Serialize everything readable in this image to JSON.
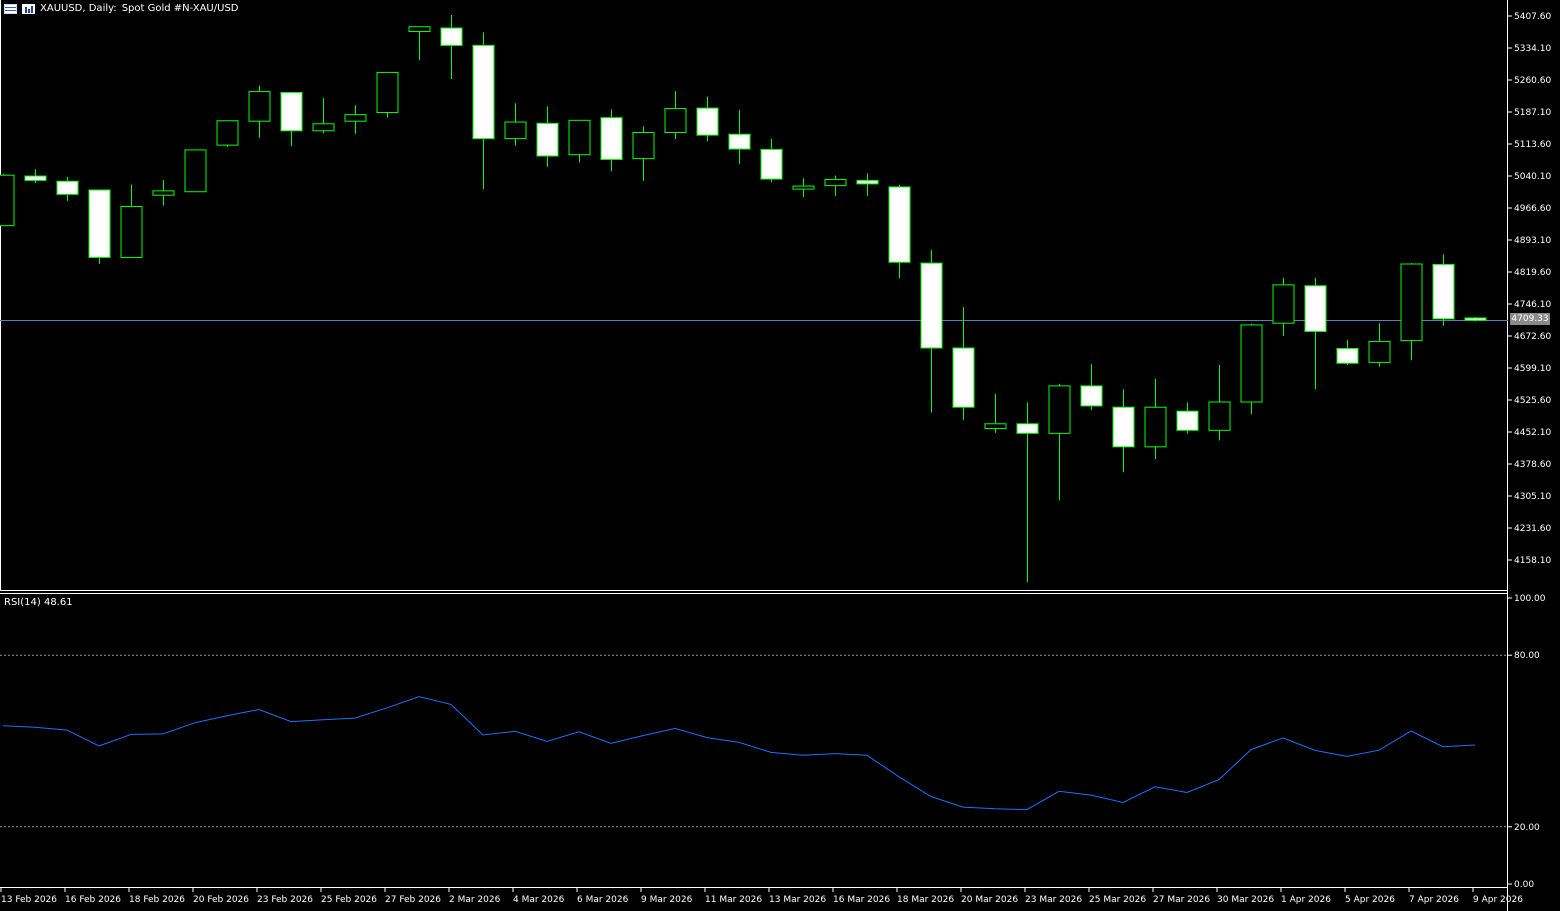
{
  "header": {
    "symbol": "XAUUSD, Daily:",
    "description": "Spot Gold #N-XAU/USD",
    "icons": [
      "window-grid-icon",
      "chart-type-icon"
    ]
  },
  "rsi_label": "RSI(14) 48.61",
  "current_price_label": "4709.33",
  "colors": {
    "background": "#000000",
    "up_body": "#000000",
    "down_body": "#ffffff",
    "wick": "#00ff00",
    "rsi_line": "#1e6fff",
    "price_line": "#5b7fbf",
    "axis_text": "#ffffff",
    "grid_dashed": "#9a9a9a"
  },
  "chart_data": [
    {
      "type": "candlestick",
      "title": "XAUUSD, Daily: Spot Gold #N-XAU/USD",
      "y_ticks": [
        "5407.60",
        "5334.10",
        "5260.60",
        "5187.10",
        "5113.60",
        "5040.10",
        "4966.60",
        "4893.10",
        "4819.60",
        "4746.10",
        "4672.60",
        "4599.10",
        "4525.60",
        "4452.10",
        "4378.60",
        "4305.10",
        "4231.60",
        "4158.10"
      ],
      "ylim": [
        4106,
        5430
      ],
      "x_ticks": [
        "13 Feb 2026",
        "16 Feb 2026",
        "18 Feb 2026",
        "20 Feb 2026",
        "23 Feb 2026",
        "25 Feb 2026",
        "27 Feb 2026",
        "2 Mar 2026",
        "4 Mar 2026",
        "6 Mar 2026",
        "9 Mar 2026",
        "11 Mar 2026",
        "13 Mar 2026",
        "16 Mar 2026",
        "18 Mar 2026",
        "20 Mar 2026",
        "23 Mar 2026",
        "25 Mar 2026",
        "27 Mar 2026",
        "30 Mar 2026",
        "1 Apr 2026",
        "5 Apr 2026",
        "7 Apr 2026",
        "9 Apr 2026"
      ],
      "last_price": 4709.33,
      "candles": [
        {
          "o": 4926,
          "h": 5045,
          "l": 4926,
          "c": 5042
        },
        {
          "o": 5040,
          "h": 5056,
          "l": 5024,
          "c": 5030
        },
        {
          "o": 5028,
          "h": 5038,
          "l": 4983,
          "c": 4998
        },
        {
          "o": 5008,
          "h": 5008,
          "l": 4838,
          "c": 4853
        },
        {
          "o": 4853,
          "h": 5020,
          "l": 4853,
          "c": 4970
        },
        {
          "o": 4996,
          "h": 5031,
          "l": 4972,
          "c": 5006
        },
        {
          "o": 5004,
          "h": 5100,
          "l": 5004,
          "c": 5100
        },
        {
          "o": 5111,
          "h": 5167,
          "l": 5107,
          "c": 5167
        },
        {
          "o": 5166,
          "h": 5248,
          "l": 5128,
          "c": 5234
        },
        {
          "o": 5232,
          "h": 5232,
          "l": 5109,
          "c": 5144
        },
        {
          "o": 5144,
          "h": 5219,
          "l": 5138,
          "c": 5160
        },
        {
          "o": 5166,
          "h": 5203,
          "l": 5137,
          "c": 5181
        },
        {
          "o": 5186,
          "h": 5278,
          "l": 5174,
          "c": 5278
        },
        {
          "o": 5372,
          "h": 5383,
          "l": 5306,
          "c": 5383
        },
        {
          "o": 5380,
          "h": 5410,
          "l": 5263,
          "c": 5340
        },
        {
          "o": 5340,
          "h": 5370,
          "l": 5010,
          "c": 5126
        },
        {
          "o": 5126,
          "h": 5207,
          "l": 5110,
          "c": 5164
        },
        {
          "o": 5161,
          "h": 5200,
          "l": 5061,
          "c": 5086
        },
        {
          "o": 5089,
          "h": 5168,
          "l": 5071,
          "c": 5168
        },
        {
          "o": 5174,
          "h": 5193,
          "l": 5051,
          "c": 5078
        },
        {
          "o": 5080,
          "h": 5154,
          "l": 5029,
          "c": 5140
        },
        {
          "o": 5140,
          "h": 5235,
          "l": 5125,
          "c": 5195
        },
        {
          "o": 5196,
          "h": 5222,
          "l": 5120,
          "c": 5134
        },
        {
          "o": 5136,
          "h": 5192,
          "l": 5067,
          "c": 5102
        },
        {
          "o": 5101,
          "h": 5126,
          "l": 5026,
          "c": 5033
        },
        {
          "o": 5010,
          "h": 5035,
          "l": 4992,
          "c": 5017
        },
        {
          "o": 5018,
          "h": 5041,
          "l": 4994,
          "c": 5032
        },
        {
          "o": 5030,
          "h": 5046,
          "l": 4994,
          "c": 5022
        },
        {
          "o": 5015,
          "h": 5020,
          "l": 4805,
          "c": 4842
        },
        {
          "o": 4840,
          "h": 4870,
          "l": 4497,
          "c": 4645
        },
        {
          "o": 4645,
          "h": 4739,
          "l": 4480,
          "c": 4509
        },
        {
          "o": 4460,
          "h": 4540,
          "l": 4450,
          "c": 4471
        },
        {
          "o": 4471,
          "h": 4520,
          "l": 4107,
          "c": 4449
        },
        {
          "o": 4449,
          "h": 4563,
          "l": 4295,
          "c": 4558
        },
        {
          "o": 4558,
          "h": 4608,
          "l": 4503,
          "c": 4512
        },
        {
          "o": 4509,
          "h": 4550,
          "l": 4360,
          "c": 4418
        },
        {
          "o": 4418,
          "h": 4574,
          "l": 4390,
          "c": 4509
        },
        {
          "o": 4500,
          "h": 4520,
          "l": 4448,
          "c": 4456
        },
        {
          "o": 4456,
          "h": 4606,
          "l": 4433,
          "c": 4521
        },
        {
          "o": 4521,
          "h": 4701,
          "l": 4493,
          "c": 4698
        },
        {
          "o": 4702,
          "h": 4806,
          "l": 4673,
          "c": 4790
        },
        {
          "o": 4788,
          "h": 4806,
          "l": 4550,
          "c": 4683
        },
        {
          "o": 4644,
          "h": 4664,
          "l": 4606,
          "c": 4610
        },
        {
          "o": 4612,
          "h": 4702,
          "l": 4602,
          "c": 4660
        },
        {
          "o": 4662,
          "h": 4840,
          "l": 4617,
          "c": 4838
        },
        {
          "o": 4837,
          "h": 4860,
          "l": 4696,
          "c": 4712
        },
        {
          "o": 4714,
          "h": 4716,
          "l": 4706,
          "c": 4709
        }
      ]
    },
    {
      "type": "line",
      "title": "RSI(14) 48.61",
      "ylim": [
        0,
        100
      ],
      "y_ticks": [
        "100.00",
        "80.00",
        "20.00",
        "0.00"
      ],
      "levels": [
        80,
        20
      ],
      "series": [
        {
          "name": "RSI(14)",
          "values": [
            55.3,
            54.8,
            53.8,
            48.3,
            52.3,
            52.5,
            56.4,
            58.8,
            61.0,
            56.8,
            57.4,
            58.0,
            61.6,
            65.5,
            62.8,
            52.1,
            53.4,
            49.9,
            53.2,
            49.2,
            51.9,
            54.4,
            51.2,
            49.5,
            46.0,
            45.0,
            45.6,
            45.0,
            37.5,
            30.6,
            26.9,
            26.3,
            26.0,
            32.4,
            31.1,
            28.5,
            34.0,
            32.0,
            36.5,
            47.0,
            51.1,
            46.7,
            44.6,
            46.8,
            53.5,
            48.0,
            48.6
          ]
        }
      ]
    }
  ]
}
